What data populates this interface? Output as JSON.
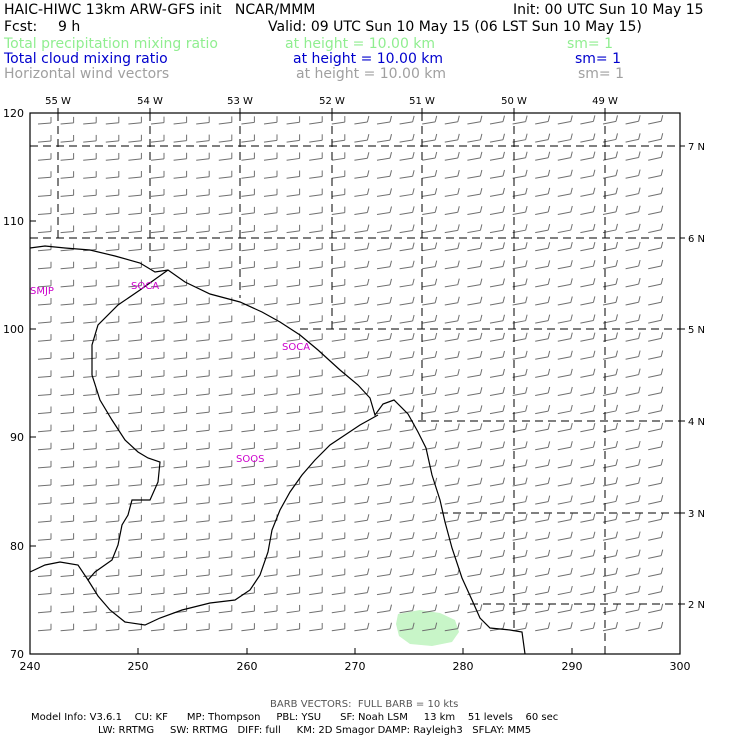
{
  "header": {
    "model_title": "HAIC-HIWC 13km ARW-GFS init   NCAR/MMM",
    "init": "Init: 00 UTC Sun 10 May 15",
    "fcst_label": "Fcst:",
    "fcst_value": "9 h",
    "valid": "Valid: 09 UTC Sun 10 May 15 (06 LST Sun 10 May 15)",
    "fields": [
      {
        "name": "Total precipitation mixing ratio",
        "level": "at height = 10.00 km",
        "sm": "sm= 1",
        "color": "#90ee90"
      },
      {
        "name": "Total cloud mixing ratio",
        "level": "at height = 10.00 km",
        "sm": "sm= 1",
        "color": "#0000cd"
      },
      {
        "name": "Horizontal wind vectors",
        "level": "at height = 10.00 km",
        "sm": "sm= 1",
        "color": "#a0a0a0"
      }
    ]
  },
  "map": {
    "top_lon_labels": [
      "55 W",
      "54 W",
      "53 W",
      "52 W",
      "51 W",
      "50 W",
      "49 W"
    ],
    "right_lat_labels": [
      "7 N",
      "6 N",
      "5 N",
      "4 N",
      "3 N",
      "2 N"
    ],
    "left_y_ticks": [
      "120",
      "110",
      "100",
      "90",
      "80",
      "70"
    ],
    "bottom_x_ticks": [
      "240",
      "250",
      "260",
      "270",
      "280",
      "290",
      "300"
    ],
    "station_labels": [
      "SMJP",
      "SOCA",
      "SOCA",
      "SOOS"
    ],
    "station_color": "#cc00cc",
    "coast_color": "#000000",
    "precip_color": "#c8f5c8",
    "barb_color": "#707070"
  },
  "footer": {
    "barb_note": "BARB VECTORS:  FULL BARB = 10 kts",
    "model_info_1": "Model Info: V3.6.1    CU: KF      MP: Thompson     PBL: YSU      SF: Noah LSM     13 km    51 levels    60 sec",
    "model_info_2": "LW: RRTMG     SW: RRTMG   DIFF: full     KM: 2D Smagor DAMP: Rayleigh3   SFLAY: MM5"
  }
}
